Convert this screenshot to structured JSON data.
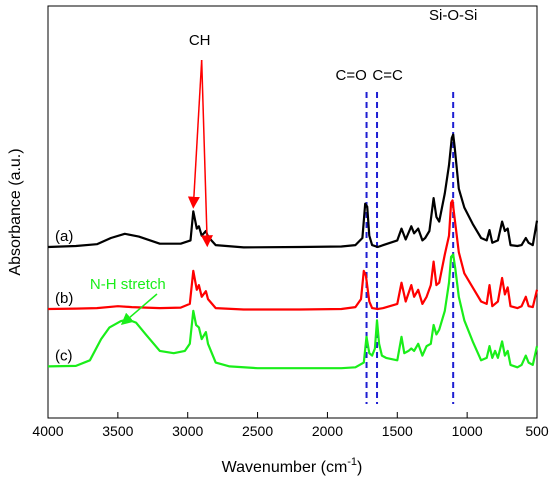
{
  "chart_data": {
    "type": "line",
    "xlabel": "Wavenumber (cm",
    "xlabel_sup": "-1",
    "xlabel_close": ")",
    "ylabel": "Absorbance (a.u.)",
    "xlim": [
      4000,
      500
    ],
    "x_reversed": true,
    "x_ticks": [
      4000,
      3500,
      3000,
      2500,
      2000,
      1500,
      1000,
      500
    ],
    "y_ticks_visible": false,
    "grid": false,
    "series": [
      {
        "name": "(a)",
        "color": "#000000",
        "offset": 2.6,
        "points": [
          [
            4000,
            0.06
          ],
          [
            3800,
            0.08
          ],
          [
            3650,
            0.12
          ],
          [
            3550,
            0.25
          ],
          [
            3450,
            0.34
          ],
          [
            3350,
            0.28
          ],
          [
            3200,
            0.13
          ],
          [
            3050,
            0.13
          ],
          [
            2980,
            0.2
          ],
          [
            2960,
            0.82
          ],
          [
            2935,
            0.45
          ],
          [
            2920,
            0.5
          ],
          [
            2900,
            0.3
          ],
          [
            2870,
            0.4
          ],
          [
            2855,
            0.28
          ],
          [
            2800,
            0.1
          ],
          [
            2600,
            0.05
          ],
          [
            2200,
            0.06
          ],
          [
            1900,
            0.07
          ],
          [
            1800,
            0.1
          ],
          [
            1750,
            0.25
          ],
          [
            1730,
            0.98
          ],
          [
            1715,
            0.92
          ],
          [
            1700,
            0.3
          ],
          [
            1680,
            0.1
          ],
          [
            1640,
            0.06
          ],
          [
            1600,
            0.1
          ],
          [
            1500,
            0.2
          ],
          [
            1470,
            0.45
          ],
          [
            1440,
            0.22
          ],
          [
            1400,
            0.5
          ],
          [
            1380,
            0.35
          ],
          [
            1350,
            0.45
          ],
          [
            1320,
            0.2
          ],
          [
            1300,
            0.25
          ],
          [
            1270,
            0.4
          ],
          [
            1240,
            1.1
          ],
          [
            1220,
            0.7
          ],
          [
            1200,
            0.6
          ],
          [
            1160,
            1.2
          ],
          [
            1130,
            1.8
          ],
          [
            1110,
            2.38
          ],
          [
            1100,
            2.45
          ],
          [
            1090,
            2.2
          ],
          [
            1060,
            1.3
          ],
          [
            1020,
            0.9
          ],
          [
            960,
            0.55
          ],
          [
            900,
            0.25
          ],
          [
            860,
            0.2
          ],
          [
            840,
            0.42
          ],
          [
            820,
            0.15
          ],
          [
            780,
            0.2
          ],
          [
            750,
            0.6
          ],
          [
            730,
            0.4
          ],
          [
            710,
            0.45
          ],
          [
            690,
            0.1
          ],
          [
            640,
            0.08
          ],
          [
            610,
            0.1
          ],
          [
            580,
            0.25
          ],
          [
            560,
            0.15
          ],
          [
            530,
            0.1
          ],
          [
            500,
            0.62
          ]
        ]
      },
      {
        "name": "(b)",
        "color": "#ff0000",
        "offset": 1.3,
        "points": [
          [
            4000,
            0.04
          ],
          [
            3800,
            0.05
          ],
          [
            3650,
            0.06
          ],
          [
            3500,
            0.1
          ],
          [
            3400,
            0.08
          ],
          [
            3200,
            0.06
          ],
          [
            3050,
            0.07
          ],
          [
            2985,
            0.15
          ],
          [
            2960,
            0.85
          ],
          [
            2935,
            0.45
          ],
          [
            2920,
            0.55
          ],
          [
            2900,
            0.3
          ],
          [
            2870,
            0.42
          ],
          [
            2855,
            0.25
          ],
          [
            2800,
            0.06
          ],
          [
            2600,
            0.03
          ],
          [
            2200,
            0.03
          ],
          [
            1900,
            0.04
          ],
          [
            1800,
            0.08
          ],
          [
            1760,
            0.25
          ],
          [
            1740,
            0.85
          ],
          [
            1725,
            0.75
          ],
          [
            1700,
            0.2
          ],
          [
            1680,
            0.06
          ],
          [
            1640,
            0.04
          ],
          [
            1600,
            0.06
          ],
          [
            1500,
            0.15
          ],
          [
            1470,
            0.6
          ],
          [
            1440,
            0.2
          ],
          [
            1400,
            0.55
          ],
          [
            1380,
            0.3
          ],
          [
            1350,
            0.45
          ],
          [
            1320,
            0.15
          ],
          [
            1290,
            0.3
          ],
          [
            1260,
            0.55
          ],
          [
            1240,
            1.05
          ],
          [
            1220,
            0.55
          ],
          [
            1200,
            0.6
          ],
          [
            1160,
            1.2
          ],
          [
            1130,
            1.6
          ],
          [
            1115,
            2.3
          ],
          [
            1105,
            2.35
          ],
          [
            1095,
            2.1
          ],
          [
            1060,
            1.25
          ],
          [
            1020,
            0.8
          ],
          [
            960,
            0.5
          ],
          [
            900,
            0.2
          ],
          [
            860,
            0.15
          ],
          [
            840,
            0.55
          ],
          [
            820,
            0.1
          ],
          [
            780,
            0.2
          ],
          [
            750,
            0.7
          ],
          [
            730,
            0.35
          ],
          [
            710,
            0.5
          ],
          [
            690,
            0.1
          ],
          [
            640,
            0.06
          ],
          [
            610,
            0.1
          ],
          [
            580,
            0.3
          ],
          [
            560,
            0.1
          ],
          [
            530,
            0.08
          ],
          [
            500,
            0.45
          ]
        ]
      },
      {
        "name": "(c)",
        "color": "#1aee1a",
        "offset": 0,
        "points": [
          [
            4000,
            0.12
          ],
          [
            3800,
            0.13
          ],
          [
            3700,
            0.25
          ],
          [
            3620,
            0.7
          ],
          [
            3560,
            0.95
          ],
          [
            3480,
            1.08
          ],
          [
            3430,
            1.12
          ],
          [
            3370,
            1.05
          ],
          [
            3300,
            0.8
          ],
          [
            3200,
            0.45
          ],
          [
            3100,
            0.4
          ],
          [
            3020,
            0.45
          ],
          [
            2985,
            0.6
          ],
          [
            2960,
            1.3
          ],
          [
            2940,
            1.0
          ],
          [
            2920,
            0.95
          ],
          [
            2900,
            0.7
          ],
          [
            2870,
            0.85
          ],
          [
            2855,
            0.6
          ],
          [
            2800,
            0.2
          ],
          [
            2700,
            0.12
          ],
          [
            2500,
            0.08
          ],
          [
            2200,
            0.08
          ],
          [
            1900,
            0.08
          ],
          [
            1800,
            0.1
          ],
          [
            1740,
            0.2
          ],
          [
            1720,
            0.75
          ],
          [
            1700,
            0.4
          ],
          [
            1680,
            0.35
          ],
          [
            1660,
            0.5
          ],
          [
            1645,
            1.1
          ],
          [
            1630,
            0.6
          ],
          [
            1610,
            0.35
          ],
          [
            1580,
            0.3
          ],
          [
            1500,
            0.25
          ],
          [
            1470,
            0.75
          ],
          [
            1450,
            0.4
          ],
          [
            1420,
            0.45
          ],
          [
            1400,
            0.5
          ],
          [
            1380,
            0.45
          ],
          [
            1350,
            0.6
          ],
          [
            1320,
            0.35
          ],
          [
            1290,
            0.55
          ],
          [
            1260,
            0.6
          ],
          [
            1240,
            1.0
          ],
          [
            1220,
            0.8
          ],
          [
            1200,
            0.9
          ],
          [
            1160,
            1.3
          ],
          [
            1130,
            1.9
          ],
          [
            1115,
            2.45
          ],
          [
            1100,
            2.5
          ],
          [
            1085,
            2.2
          ],
          [
            1060,
            1.6
          ],
          [
            1020,
            1.1
          ],
          [
            960,
            0.65
          ],
          [
            900,
            0.25
          ],
          [
            860,
            0.3
          ],
          [
            840,
            0.55
          ],
          [
            820,
            0.3
          ],
          [
            800,
            0.45
          ],
          [
            780,
            0.3
          ],
          [
            750,
            0.65
          ],
          [
            730,
            0.35
          ],
          [
            710,
            0.45
          ],
          [
            690,
            0.15
          ],
          [
            640,
            0.1
          ],
          [
            610,
            0.15
          ],
          [
            580,
            0.35
          ],
          [
            560,
            0.2
          ],
          [
            530,
            0.15
          ],
          [
            500,
            0.55
          ]
        ]
      }
    ],
    "annotations": [
      {
        "text": "CH",
        "x": 2900,
        "arrows_to": [
          2960,
          2860
        ]
      },
      {
        "text": "C=O",
        "x": 1730
      },
      {
        "text": "C=C",
        "x": 1655
      },
      {
        "text": "Si-O-Si",
        "x": 1100
      },
      {
        "text": "N-H stretch",
        "x": 3350,
        "color": "#1aee1a",
        "arrow_to": 3470
      }
    ],
    "vlines": [
      {
        "x": 1720,
        "color": "#1e1ed2",
        "style": "dashed"
      },
      {
        "x": 1645,
        "color": "#1e1ed2",
        "style": "dashed"
      },
      {
        "x": 1100,
        "color": "#1e1ed2",
        "style": "dashed"
      }
    ]
  }
}
